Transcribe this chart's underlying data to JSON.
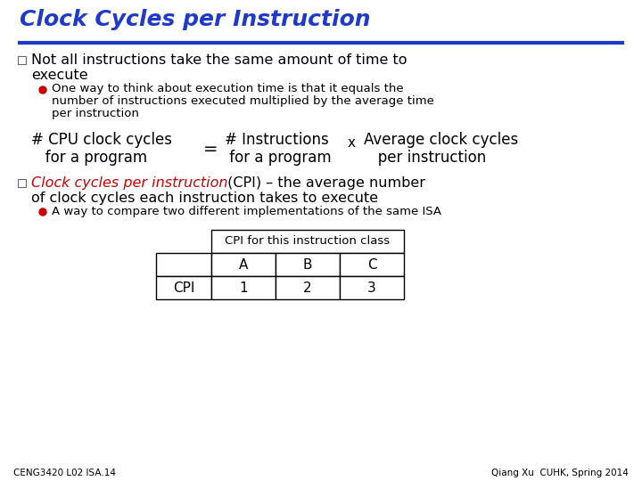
{
  "title": "Clock Cycles per Instruction",
  "title_color": "#1F3AC8",
  "title_underline_color": "#1F3AC8",
  "bg_color": "#FFFFFF",
  "bullet1_text_line1": "Not all instructions take the same amount of time to",
  "bullet1_text_line2": "execute",
  "bullet1_color": "#000000",
  "sub_bullet1_line1": "One way to think about execution time is that it equals the",
  "sub_bullet1_line2": "number of instructions executed multiplied by the average time",
  "sub_bullet1_line3": "per instruction",
  "sub_bullet1_color": "#000000",
  "formula_left_1": "# CPU clock cycles",
  "formula_left_2": "   for a program",
  "formula_eq": "=",
  "formula_mid_1": "# Instructions",
  "formula_mid_2": " for a program",
  "formula_x": "x",
  "formula_right_1": "Average clock cycles",
  "formula_right_2": "   per instruction",
  "bullet2_red": "Clock cycles per instruction",
  "bullet2_black": " (CPI) – the average number",
  "bullet2_line2": "of clock cycles each instruction takes to execute",
  "sub_bullet2": "A way to compare two different implementations of the same ISA",
  "table_header": "CPI for this instruction class",
  "table_col_labels": [
    "",
    "A",
    "B",
    "C"
  ],
  "table_data": [
    "CPI",
    "1",
    "2",
    "3"
  ],
  "footer_left": "CENG3420 L02 ISA.14",
  "footer_right": "Qiang Xu  CUHK, Spring 2014",
  "red_color": "#CC0000",
  "dark_blue": "#1F3AC8",
  "black": "#000000",
  "white": "#FFFFFF",
  "bullet_box_color": "#888888"
}
